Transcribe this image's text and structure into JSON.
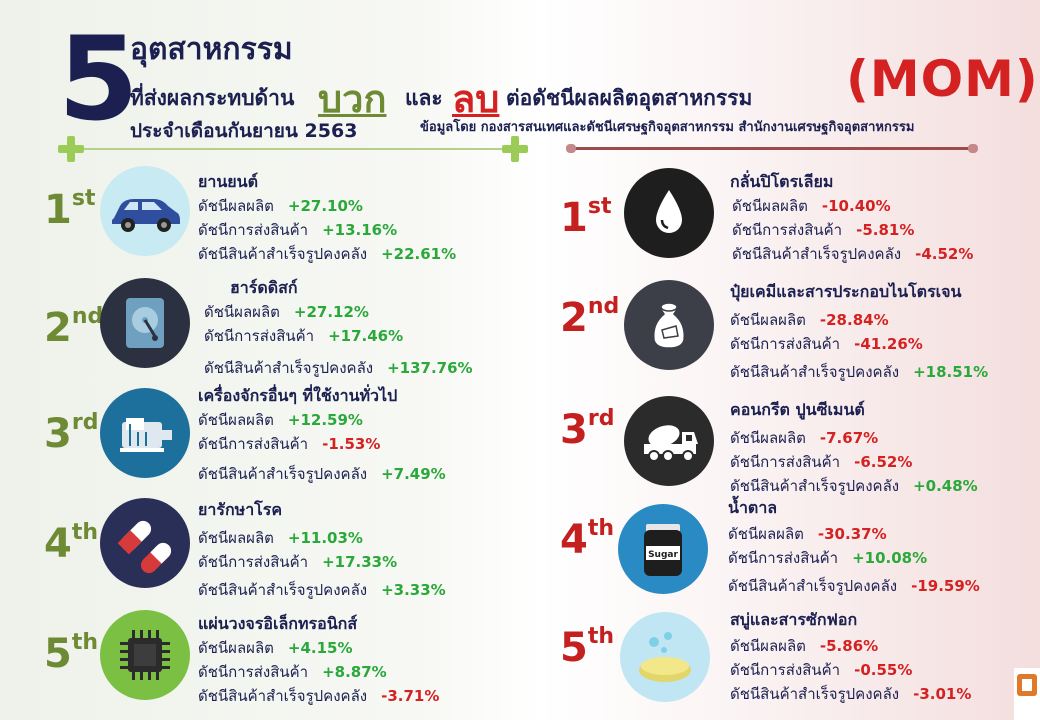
{
  "header": {
    "number": "5",
    "title": "อุตสาหกรรม",
    "subtitle_pre": "ที่ส่งผลกระทบด้าน",
    "word_positive": "บวก",
    "word_and": "และ",
    "word_negative": "ลบ",
    "subtitle_post": "ต่อดัชนีผลผลิตอุตสาหกรรม",
    "period": "ประจำเดือนกันยายน  2563",
    "mom": "(MOM)",
    "source": "ข้อมูลโดย  กองสารสนเทศและดัชนีเศรษฐกิจอุตสาหกรรม  สำนักงานเศรษฐกิจอุตสาหกรรม"
  },
  "labels": {
    "production": "ดัชนีผลผลิต",
    "shipment": "ดัชนีการส่งสินค้า",
    "inventory": "ดัชนีสินค้าสำเร็จรูปคงคลัง"
  },
  "colors": {
    "positive_accent": "#6e8a34",
    "negative_accent": "#c42020",
    "up_value": "#2aa83a",
    "down_value": "#d42222",
    "title": "#1b2050"
  },
  "positive": [
    {
      "rank_num": "1",
      "rank_suffix": "st",
      "name": "ยานยนต์",
      "icon": "car-icon",
      "production": "+27.10%",
      "shipment": "+13.16%",
      "inventory": "+22.61%"
    },
    {
      "rank_num": "2",
      "rank_suffix": "nd",
      "name": "ฮาร์ดดิสก์",
      "icon": "hard-disk-icon",
      "production": "+27.12%",
      "shipment": "+17.46%",
      "inventory": "+137.76%"
    },
    {
      "rank_num": "3",
      "rank_suffix": "rd",
      "name": "เครื่องจักรอื่นๆ ที่ใช้งานทั่วไป",
      "icon": "machine-motor-icon",
      "production": "+12.59%",
      "shipment": "-1.53%",
      "inventory": "+7.49%"
    },
    {
      "rank_num": "4",
      "rank_suffix": "th",
      "name": "ยารักษาโรค",
      "icon": "pills-icon",
      "production": "+11.03%",
      "shipment": "+17.33%",
      "inventory": "+3.33%"
    },
    {
      "rank_num": "5",
      "rank_suffix": "th",
      "name": "แผ่นวงจรอิเล็กทรอนิกส์",
      "icon": "chip-icon",
      "production": "+4.15%",
      "shipment": "+8.87%",
      "inventory": "-3.71%"
    }
  ],
  "negative": [
    {
      "rank_num": "1",
      "rank_suffix": "st",
      "name": "กลั่นปิโตรเลียม",
      "icon": "oil-drop-icon",
      "production": "-10.40%",
      "shipment": "-5.81%",
      "inventory": "-4.52%"
    },
    {
      "rank_num": "2",
      "rank_suffix": "nd",
      "name": "ปุ๋ยเคมีและสารประกอบไนโตรเจน",
      "icon": "fertilizer-bag-icon",
      "production": "-28.84%",
      "shipment": "-41.26%",
      "inventory": "+18.51%"
    },
    {
      "rank_num": "3",
      "rank_suffix": "rd",
      "name": "คอนกรีต ปูนซีเมนต์",
      "icon": "cement-truck-icon",
      "production": "-7.67%",
      "shipment": "-6.52%",
      "inventory": "+0.48%"
    },
    {
      "rank_num": "4",
      "rank_suffix": "th",
      "name": "น้ำตาล",
      "icon": "sugar-jar-icon",
      "jar_label": "Sugar",
      "production": "-30.37%",
      "shipment": "+10.08%",
      "inventory": "-19.59%"
    },
    {
      "rank_num": "5",
      "rank_suffix": "th",
      "name": "สบู่และสารซักฟอก",
      "icon": "soap-icon",
      "production": "-5.86%",
      "shipment": "-0.55%",
      "inventory": "-3.01%"
    }
  ]
}
